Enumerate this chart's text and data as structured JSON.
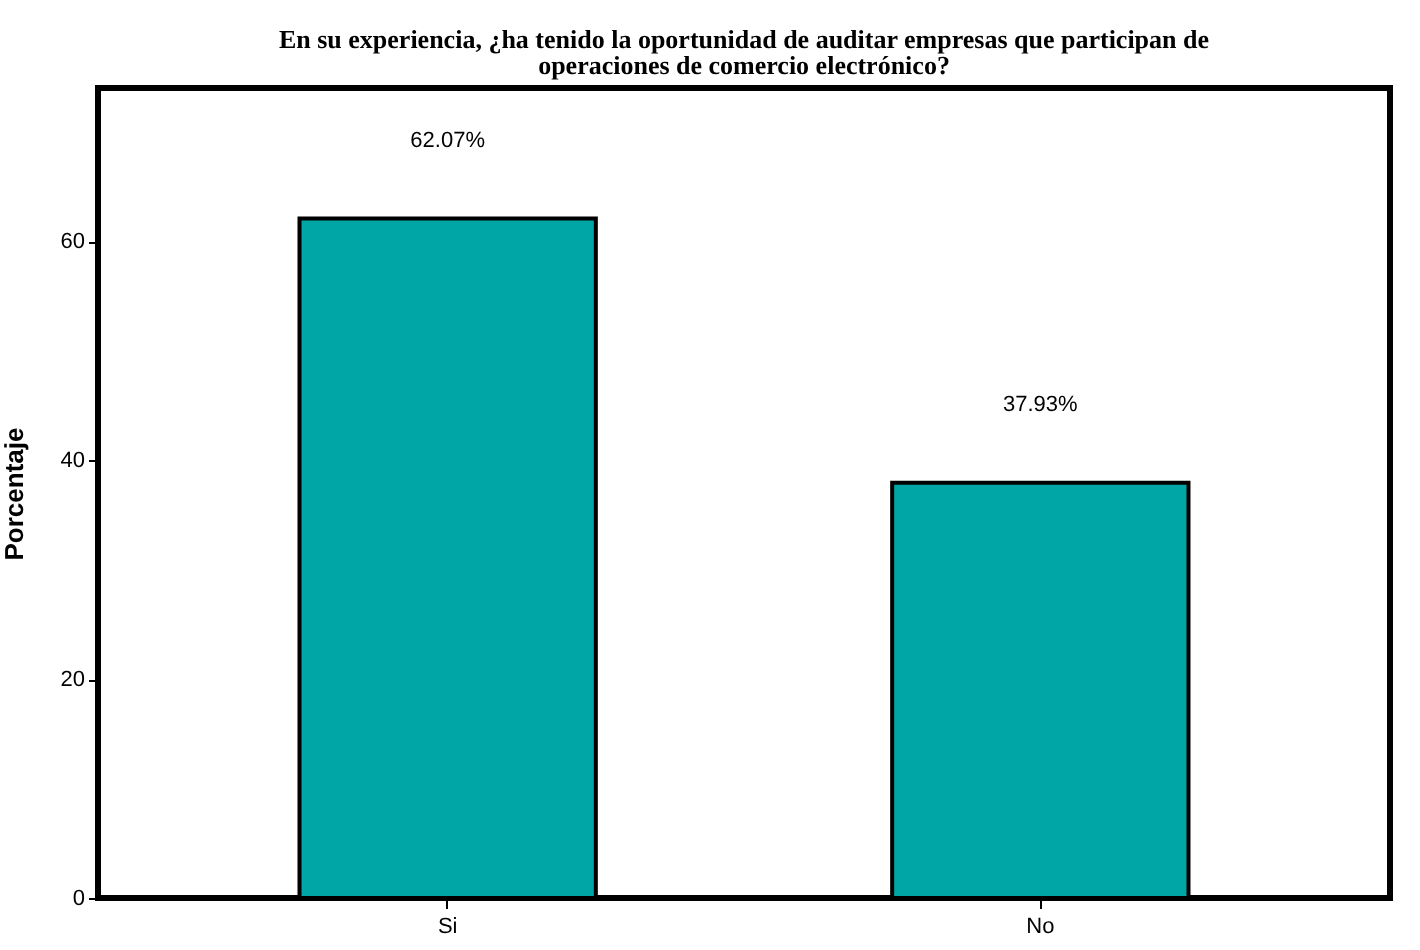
{
  "chart_data": {
    "type": "bar",
    "title": "En su experiencia, ¿ha tenido la oportunidad de auditar empresas que participan de operaciones de comercio electrónico?",
    "ylabel": "Porcentaje",
    "categories": [
      "Si",
      "No"
    ],
    "values": [
      62.07,
      37.93
    ],
    "value_labels": [
      "62.07%",
      "37.93%"
    ],
    "color": "#00a6a6",
    "ylim": [
      0,
      74
    ],
    "yticks": [
      0,
      20,
      40,
      60
    ],
    "grid": false
  }
}
